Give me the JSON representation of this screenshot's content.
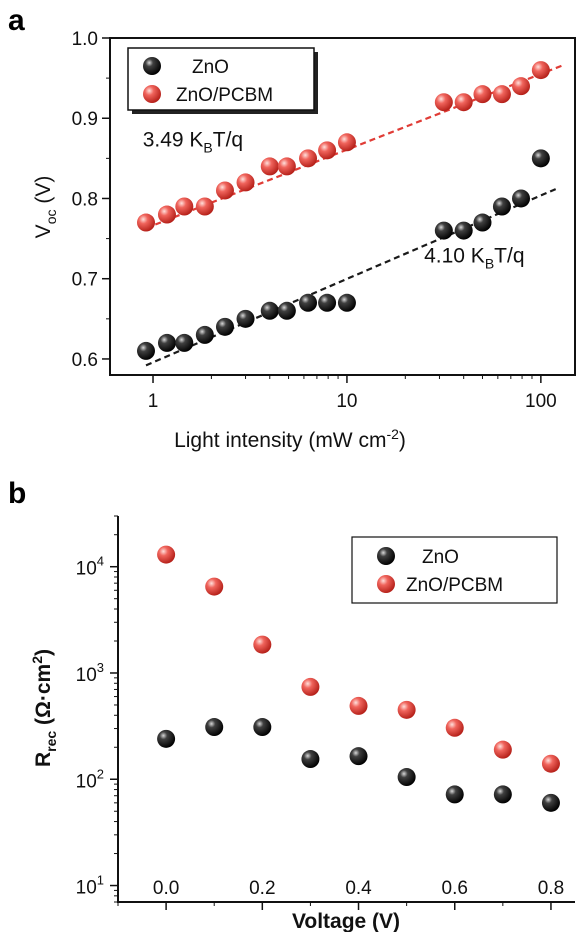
{
  "chart_data": [
    {
      "panel": "a",
      "type": "scatter",
      "xscale": "log",
      "xlim": [
        0.6,
        150
      ],
      "ylim": [
        0.58,
        1.0
      ],
      "xlabel": "Light intensity (mW cm",
      "xlabel_sup": "-2",
      "xlabel_end": ")",
      "ylabel_main": "V",
      "ylabel_sub": "oc",
      "ylabel_end": " (V)",
      "xticks": [
        1,
        10,
        100
      ],
      "xtick_labels": [
        "1",
        "10",
        "100"
      ],
      "yticks": [
        0.6,
        0.7,
        0.8,
        0.9,
        1.0
      ],
      "ytick_labels": [
        "0.6",
        "0.7",
        "0.8",
        "0.9",
        "1.0"
      ],
      "grid": false,
      "legend_position": "top-left",
      "series": [
        {
          "name": "ZnO",
          "color": "#1a1a1a",
          "x": [
            0.92,
            1.18,
            1.45,
            1.85,
            2.35,
            3.0,
            4.0,
            4.9,
            6.3,
            7.9,
            10,
            31.6,
            40,
            50,
            63,
            79,
            100
          ],
          "y": [
            0.61,
            0.62,
            0.62,
            0.63,
            0.64,
            0.65,
            0.66,
            0.66,
            0.67,
            0.67,
            0.67,
            0.76,
            0.76,
            0.77,
            0.79,
            0.8,
            0.85
          ]
        },
        {
          "name": "ZnO/PCBM",
          "color": "#e03c36",
          "x": [
            0.92,
            1.18,
            1.45,
            1.85,
            2.35,
            3.0,
            4.0,
            4.9,
            6.3,
            7.9,
            10,
            31.6,
            40,
            50,
            63,
            79,
            100
          ],
          "y": [
            0.77,
            0.78,
            0.79,
            0.79,
            0.81,
            0.82,
            0.84,
            0.84,
            0.85,
            0.86,
            0.87,
            0.92,
            0.92,
            0.93,
            0.93,
            0.94,
            0.96
          ]
        }
      ],
      "fit_lines": [
        {
          "series": "ZnO",
          "color": "#1a1a1a",
          "x": [
            0.92,
            120
          ],
          "y": [
            0.592,
            0.812
          ]
        },
        {
          "series": "ZnO/PCBM",
          "color": "#e03c36",
          "x": [
            0.92,
            130
          ],
          "y": [
            0.763,
            0.966
          ]
        }
      ],
      "annotations": [
        {
          "main": "3.49 K",
          "sub": "B",
          "end": "T/q",
          "at": [
            0.95,
            0.865
          ]
        },
        {
          "main": "4.10 K",
          "sub": "B",
          "end": "T/q",
          "at": [
            25,
            0.72
          ]
        }
      ]
    },
    {
      "panel": "b",
      "type": "scatter",
      "yscale": "log",
      "xlim": [
        -0.1,
        0.85
      ],
      "ylim": [
        7,
        30000
      ],
      "xlabel": "Voltage (V)",
      "ylabel_main": "R",
      "ylabel_sub": "rec",
      "ylabel_end": " (Ω·cm",
      "ylabel_sup": "2",
      "ylabel_close": ")",
      "xticks": [
        0.0,
        0.2,
        0.4,
        0.6,
        0.8
      ],
      "xtick_labels": [
        "0.0",
        "0.2",
        "0.4",
        "0.6",
        "0.8"
      ],
      "yticks": [
        10,
        100,
        1000,
        10000
      ],
      "ytick_base": "10",
      "ytick_exps": [
        "1",
        "2",
        "3",
        "4"
      ],
      "grid": false,
      "legend_position": "top-right",
      "series": [
        {
          "name": "ZnO",
          "color": "#1a1a1a",
          "x": [
            0.0,
            0.1,
            0.2,
            0.3,
            0.4,
            0.5,
            0.6,
            0.7,
            0.8
          ],
          "y": [
            240,
            310,
            310,
            155,
            165,
            105,
            72,
            72,
            60
          ]
        },
        {
          "name": "ZnO/PCBM",
          "color": "#e03c36",
          "x": [
            0.0,
            0.1,
            0.2,
            0.3,
            0.4,
            0.5,
            0.6,
            0.7,
            0.8
          ],
          "y": [
            13000,
            6500,
            1850,
            740,
            490,
            450,
            305,
            190,
            140
          ]
        }
      ]
    }
  ]
}
